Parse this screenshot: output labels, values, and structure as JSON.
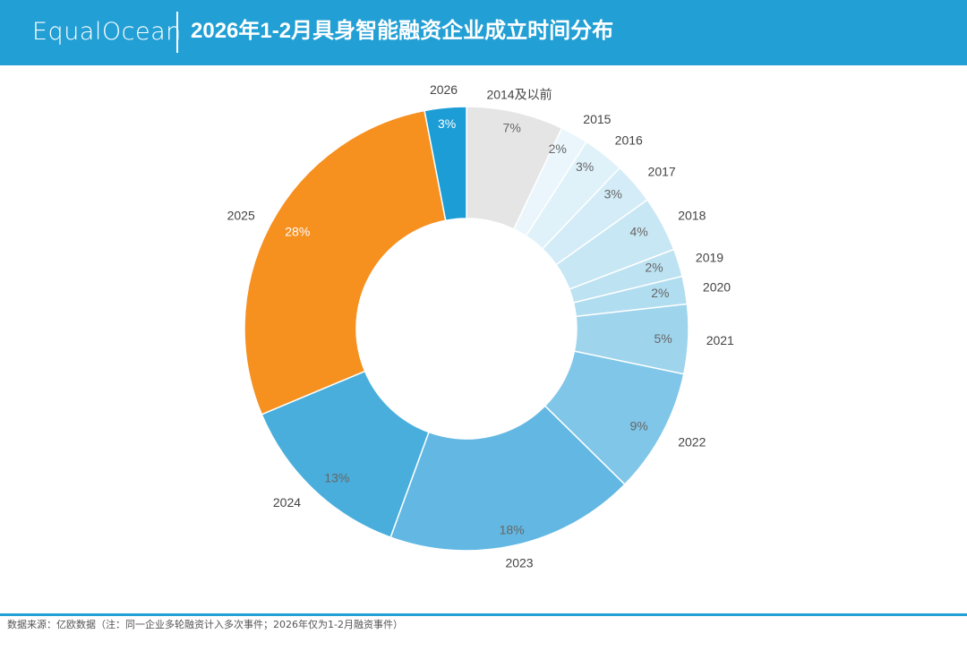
{
  "header": {
    "logo": "EqualOcean",
    "title": "2026年1-2月具身智能融资企业成立时间分布"
  },
  "chart_data": {
    "type": "pie",
    "variant": "donut",
    "title": "2026年1-2月具身智能融资企业成立时间分布",
    "categories": [
      "2014及以前",
      "2015",
      "2016",
      "2017",
      "2018",
      "2019",
      "2020",
      "2021",
      "2022",
      "2023",
      "2024",
      "2025",
      "2026"
    ],
    "values": [
      7,
      2,
      3,
      3,
      4,
      2,
      2,
      5,
      9,
      18,
      13,
      28,
      3
    ],
    "labels": [
      "7%",
      "2%",
      "3%",
      "3%",
      "4%",
      "2%",
      "2%",
      "5%",
      "9%",
      "18%",
      "13%",
      "28%",
      "3%"
    ],
    "colors": [
      "#e5e5e5",
      "#eaf6fb",
      "#dff1f9",
      "#d3ecf7",
      "#c8e7f4",
      "#bde2f2",
      "#b1ddf0",
      "#9fd4ed",
      "#7fc6e8",
      "#62b8e2",
      "#49aedc",
      "#f6901f",
      "#1c9dd6"
    ],
    "percent_label_color": "#666666",
    "legend": "none"
  },
  "footer": {
    "source": "数据来源：亿欧数据（注：同一企业多轮融资计入多次事件；2026年仅为1-2月融资事件）"
  }
}
